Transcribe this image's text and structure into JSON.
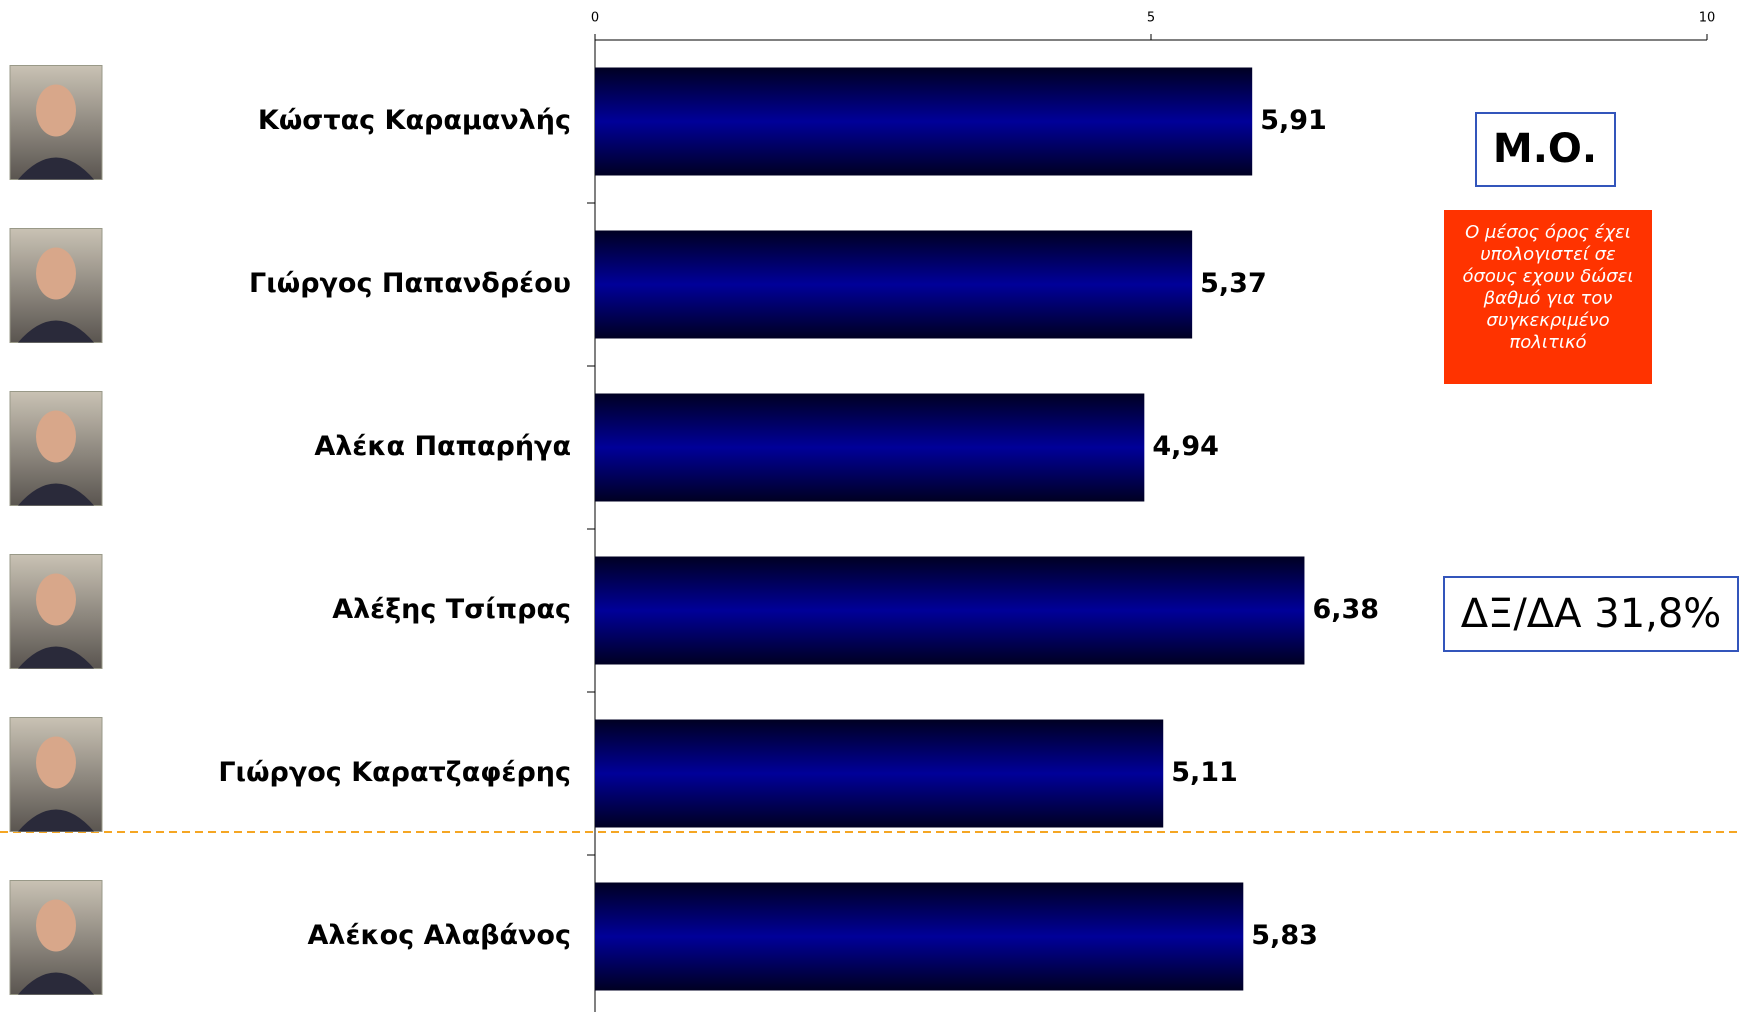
{
  "chart_data": {
    "type": "bar",
    "orientation": "horizontal",
    "categories": [
      "Κώστας Καραμανλής",
      "Γιώργος Παπανδρέου",
      "Αλέκα Παπαρήγα",
      "Αλέξης Τσίπρας",
      "Γιώργος Καρατζαφέρης",
      "Αλέκος Αλαβάνος"
    ],
    "values": [
      5.91,
      5.37,
      4.94,
      6.38,
      5.11,
      5.83
    ],
    "value_labels": [
      "5,91",
      "5,37",
      "4,94",
      "6,38",
      "5,11",
      "5,83"
    ],
    "color": "#000080",
    "xlim": [
      0,
      10
    ],
    "xticks": [
      0,
      5,
      10
    ],
    "annotations": [
      "Μ.Ο.",
      "Ο μέσος όρος έχει υπολογιστεί σε όσους εχουν δώσει βαθμό για τον συγκεκριμένο πολιτικό",
      "ΔΞ/ΔΑ 31,8%"
    ]
  }
}
